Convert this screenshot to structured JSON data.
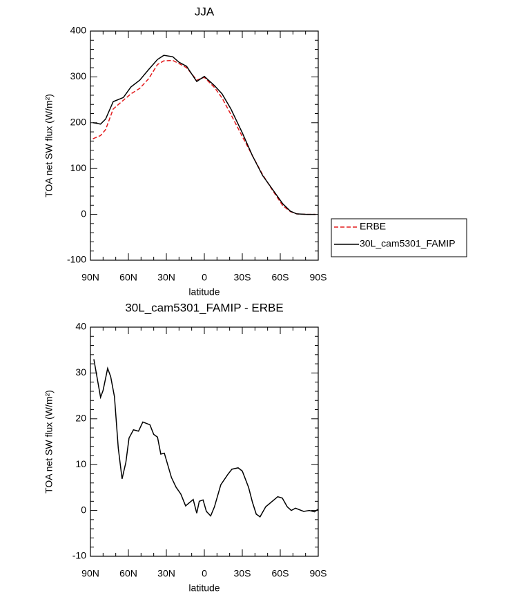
{
  "chart_data": [
    {
      "type": "line",
      "title": "JJA",
      "xlabel": "latitude",
      "ylabel": "TOA net SW flux (W/m²)",
      "x": [
        88,
        82,
        78,
        72,
        64,
        58,
        51,
        44,
        37,
        32,
        25,
        20,
        14,
        6,
        0,
        -8,
        -14,
        -21,
        -30,
        -38,
        -46,
        -54,
        -62,
        -68,
        -73,
        -81,
        -88
      ],
      "series": [
        {
          "name": "ERBE",
          "color": "#e31a1c",
          "dashed": true,
          "values": [
            165,
            172,
            185,
            230,
            249,
            263,
            275,
            296,
            327,
            335,
            336,
            329,
            320,
            293,
            299,
            277,
            254,
            218,
            170,
            128,
            87,
            52,
            19,
            6,
            1,
            0,
            0
          ]
        },
        {
          "name": "30L_cam5301_FAMIP",
          "color": "#000000",
          "dashed": false,
          "values": [
            200,
            197,
            208,
            246,
            255,
            278,
            293,
            316,
            338,
            347,
            344,
            332,
            323,
            290,
            301,
            281,
            263,
            230,
            178,
            128,
            85,
            54,
            23,
            7,
            1,
            0,
            0
          ]
        }
      ],
      "xlim": [
        90,
        -90
      ],
      "xticks": [
        {
          "value": 90,
          "label": "90N"
        },
        {
          "value": 60,
          "label": "60N"
        },
        {
          "value": 30,
          "label": "30N"
        },
        0,
        {
          "value": -30,
          "label": "30S"
        },
        {
          "value": -60,
          "label": "60S"
        },
        {
          "value": -90,
          "label": "90S"
        }
      ],
      "ylim": [
        -100,
        400
      ],
      "yticks": [
        -100,
        0,
        100,
        200,
        300,
        400
      ],
      "legend": "outside-right"
    },
    {
      "type": "line",
      "title": "30L_cam5301_FAMIP - ERBE",
      "xlabel": "latitude",
      "ylabel": "TOA net SW flux (W/m²)",
      "x": [
        87.3,
        82,
        80,
        76.4,
        74,
        71,
        68,
        65,
        62,
        59.5,
        56,
        52,
        48.6,
        43,
        40,
        37,
        34.4,
        31.6,
        26,
        22.4,
        18.6,
        14.8,
        8.8,
        6,
        4,
        1,
        -1.6,
        -5,
        -8,
        -13,
        -18.4,
        -21.8,
        -26.7,
        -30,
        -35,
        -38,
        -41,
        -44,
        -48.5,
        -55,
        -58,
        -61.6,
        -65.5,
        -68.7,
        -72,
        -78.5,
        -83,
        -87,
        -90
      ],
      "series": [
        {
          "name": "30L_cam5301_FAMIP - ERBE",
          "color": "#000000",
          "dashed": false,
          "values": [
            33,
            24.7,
            26.2,
            31,
            29.2,
            24.8,
            13.6,
            6.9,
            10.5,
            15.8,
            17.6,
            17.3,
            19.3,
            18.7,
            16.6,
            16,
            12.3,
            12.5,
            7.2,
            5.1,
            3.6,
            1,
            2.4,
            -0.6,
            2,
            2.3,
            -0.2,
            -1.2,
            0.8,
            5.6,
            7.8,
            9,
            9.3,
            8.6,
            5,
            1.8,
            -0.8,
            -1.4,
            0.8,
            2.3,
            3,
            2.7,
            0.8,
            0,
            0.5,
            -0.2,
            0,
            -0.3,
            0.3
          ]
        }
      ],
      "xlim": [
        90,
        -90
      ],
      "xticks": [
        {
          "value": 90,
          "label": "90N"
        },
        {
          "value": 60,
          "label": "60N"
        },
        {
          "value": 30,
          "label": "30N"
        },
        0,
        {
          "value": -30,
          "label": "30S"
        },
        {
          "value": -60,
          "label": "60S"
        },
        {
          "value": -90,
          "label": "90S"
        }
      ],
      "ylim": [
        -10,
        40
      ],
      "yticks": [
        -10,
        0,
        10,
        20,
        30,
        40
      ]
    }
  ]
}
